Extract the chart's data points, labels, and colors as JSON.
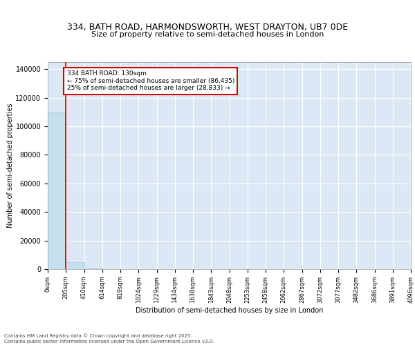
{
  "title_line1": "334, BATH ROAD, HARMONDSWORTH, WEST DRAYTON, UB7 0DE",
  "title_line2": "Size of property relative to semi-detached houses in London",
  "xlabel": "Distribution of semi-detached houses by size in London",
  "ylabel": "Number of semi-detached properties",
  "bar_color": "#c5dff0",
  "bar_edge_color": "#a8cde0",
  "background_color": "#dce8f5",
  "grid_color": "#ffffff",
  "annotation_text": "334 BATH ROAD: 130sqm\n← 75% of semi-detached houses are smaller (86,435)\n25% of semi-detached houses are larger (28,833) →",
  "annotation_box_color": "#ffffff",
  "annotation_border_color": "#cc0000",
  "vline_color": "#cc0000",
  "ylim": [
    0,
    145000
  ],
  "yticks": [
    0,
    20000,
    40000,
    60000,
    80000,
    100000,
    120000,
    140000
  ],
  "bar_heights": [
    110000,
    5000,
    400,
    150,
    80,
    40,
    20,
    10,
    7,
    5,
    3,
    2,
    1,
    1,
    0,
    0,
    0,
    0,
    0,
    0
  ],
  "x_labels": [
    "0sqm",
    "205sqm",
    "410sqm",
    "614sqm",
    "819sqm",
    "1024sqm",
    "1229sqm",
    "1434sqm",
    "1638sqm",
    "1843sqm",
    "2048sqm",
    "2253sqm",
    "2458sqm",
    "2662sqm",
    "2867sqm",
    "3072sqm",
    "3077sqm",
    "3482sqm",
    "3686sqm",
    "3891sqm",
    "4096sqm"
  ],
  "footer_text": "Contains HM Land Registry data © Crown copyright and database right 2025.\nContains public sector information licensed under the Open Government Licence v3.0.",
  "title_fontsize": 9,
  "axis_label_fontsize": 7,
  "tick_fontsize": 6,
  "footer_fontsize": 5
}
